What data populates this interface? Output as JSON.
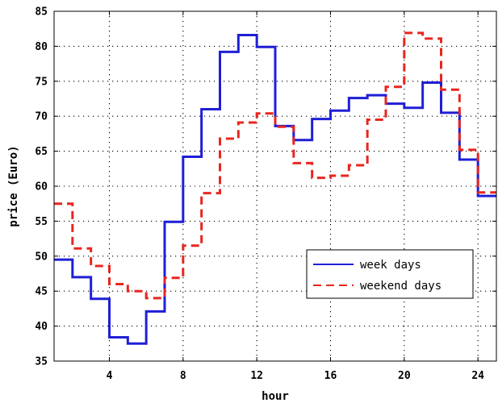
{
  "chart_data": {
    "type": "line",
    "step": "post",
    "title": "",
    "xlabel": "hour",
    "ylabel": "price (Euro)",
    "xlim": [
      1,
      25
    ],
    "ylim": [
      35,
      85
    ],
    "xticks": [
      4,
      8,
      12,
      16,
      20,
      24
    ],
    "yticks": [
      35,
      40,
      45,
      50,
      55,
      60,
      65,
      70,
      75,
      80,
      85
    ],
    "grid": true,
    "legend_position": "lower-right",
    "x": [
      1,
      2,
      3,
      4,
      5,
      6,
      7,
      8,
      9,
      10,
      11,
      12,
      13,
      14,
      15,
      16,
      17,
      18,
      19,
      20,
      21,
      22,
      23,
      24,
      25
    ],
    "series": [
      {
        "name": "week days",
        "color": "#1f1fd6",
        "dash": "solid",
        "values": [
          49.5,
          47.0,
          43.9,
          38.4,
          37.5,
          42.1,
          54.9,
          64.2,
          71.0,
          79.2,
          81.6,
          79.9,
          68.6,
          66.6,
          69.6,
          70.8,
          72.6,
          73.0,
          71.8,
          71.2,
          74.8,
          70.5,
          63.8,
          58.6,
          58.6
        ]
      },
      {
        "name": "weekend days",
        "color": "#e8261f",
        "dash": "dashed",
        "values": [
          57.5,
          51.1,
          48.6,
          46.0,
          45.0,
          44.0,
          46.9,
          51.5,
          59.0,
          66.8,
          69.1,
          70.4,
          68.5,
          63.3,
          61.2,
          61.5,
          63.0,
          69.5,
          74.2,
          81.9,
          81.1,
          73.8,
          65.2,
          59.1,
          59.1
        ]
      }
    ]
  }
}
